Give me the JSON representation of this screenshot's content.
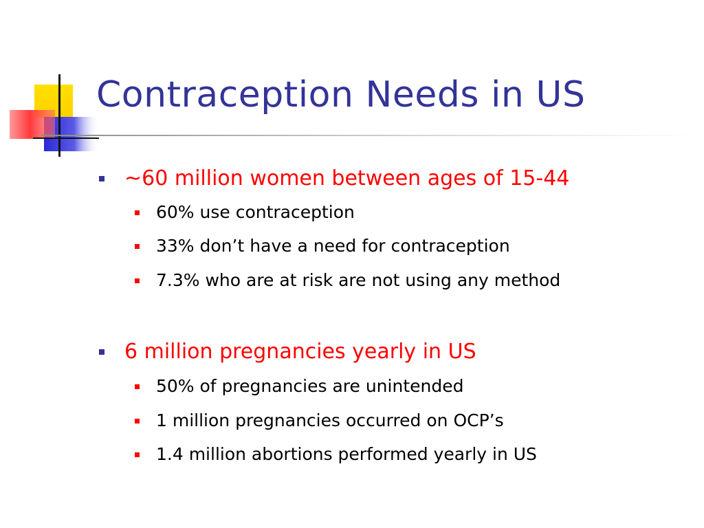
{
  "slide": {
    "title": "Contraception Needs in US",
    "sections": [
      {
        "heading": "~60 million women between ages of 15-44",
        "items": [
          "60% use contraception",
          "33% don’t have a need for contraception",
          "7.3% who are at risk are not using any method"
        ]
      },
      {
        "heading": "6 million pregnancies yearly in US",
        "items": [
          "50% of pregnancies are unintended",
          "1 million pregnancies occurred on OCP’s",
          "1.4 million abortions performed yearly in US"
        ]
      }
    ]
  },
  "colors": {
    "title": "#333399",
    "heading": "#ff0000",
    "body": "#000000",
    "heading_bullet": "#333399",
    "item_bullet": "#ff0000",
    "logo_yellow": "#ffd800",
    "logo_red": "#ff4a4a",
    "logo_blue": "#3c3cdc"
  }
}
